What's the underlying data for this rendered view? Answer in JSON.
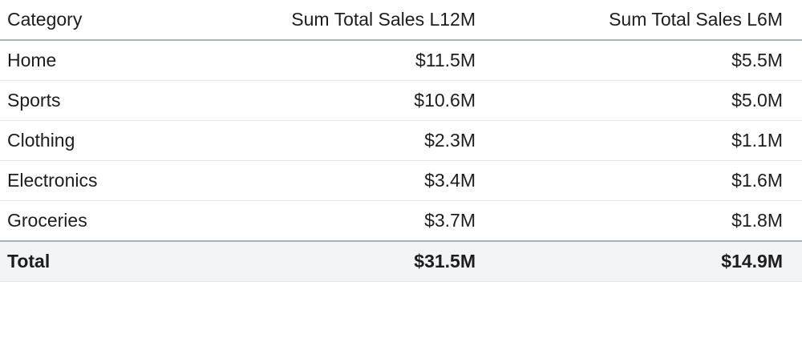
{
  "table": {
    "headers": [
      "Category",
      "Sum Total Sales L12M",
      "Sum Total Sales L6M"
    ],
    "rows": [
      [
        "Home",
        "$11.5M",
        "$5.5M"
      ],
      [
        "Sports",
        "$10.6M",
        "$5.0M"
      ],
      [
        "Clothing",
        "$2.3M",
        "$1.1M"
      ],
      [
        "Electronics",
        "$3.4M",
        "$1.6M"
      ],
      [
        "Groceries",
        "$3.7M",
        "$1.8M"
      ]
    ],
    "total": [
      "Total",
      "$31.5M",
      "$14.9M"
    ]
  }
}
